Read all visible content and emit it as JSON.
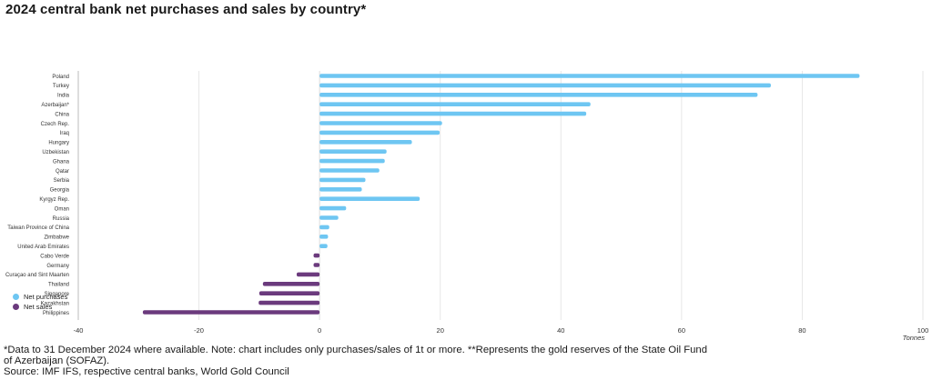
{
  "title": "2024 central bank net purchases and sales by country*",
  "footnote": "*Data to 31 December 2024 where available. Note: chart includes only purchases/sales of 1t or more. **Represents the gold reserves of the State Oil Fund of Azerbaijan (SOFAZ).",
  "source": "Source: IMF IFS, respective central banks, World Gold Council",
  "colors": {
    "purchases": "#6ec6f2",
    "sales": "#6b3a7d",
    "grid": "#e6e6e6",
    "axis": "#bbbbbb"
  },
  "legend": [
    {
      "label": "Net purchases",
      "color": "#6ec6f2"
    },
    {
      "label": "Net sales",
      "color": "#6b3a7d"
    }
  ],
  "chart_data": {
    "type": "bar",
    "orientation": "horizontal",
    "title": "2024 central bank net purchases and sales by country*",
    "xlabel": "Tonnes",
    "xlim": [
      -40,
      100
    ],
    "xticks": [
      -40,
      -20,
      0,
      20,
      40,
      60,
      80,
      100
    ],
    "grid": true,
    "legend_position": "bottom-left",
    "categories": [
      "Poland",
      "Turkey",
      "India",
      "Azerbaijan*",
      "China",
      "Czech Rep.",
      "Iraq",
      "Hungary",
      "Uzbekistan",
      "Ghana",
      "Qatar",
      "Serbia",
      "Georgia",
      "Kyrgyz Rep.",
      "Oman",
      "Russia",
      "Taiwan Province of China",
      "Zimbabwe",
      "United Arab Emirates",
      "Cabo Verde",
      "Germany",
      "Curaçao and Sint Maarten",
      "Thailand",
      "Singapore",
      "Kazakhstan",
      "Philippines"
    ],
    "values": [
      89.5,
      74.8,
      72.6,
      44.9,
      44.2,
      20.3,
      19.9,
      15.3,
      11.1,
      10.8,
      9.9,
      7.6,
      7.0,
      16.6,
      4.4,
      3.1,
      1.6,
      1.4,
      1.3,
      -1.0,
      -1.0,
      -3.8,
      -9.4,
      -10.0,
      -10.1,
      -29.3
    ]
  }
}
